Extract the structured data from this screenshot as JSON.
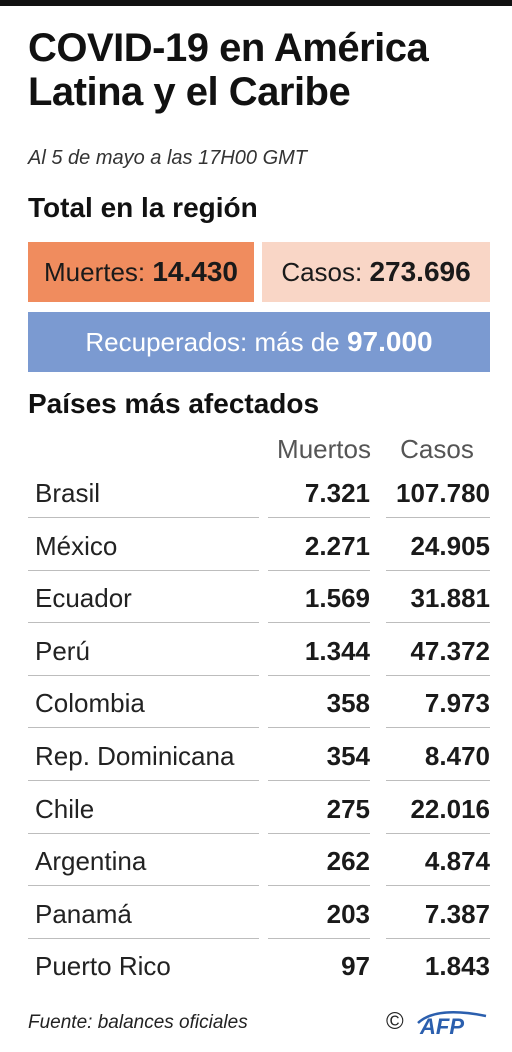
{
  "header": {
    "title_line1": "COVID-19 en América",
    "title_line2": "Latina y el Caribe",
    "subtitle": "Al 5 de mayo a las 17H00 GMT"
  },
  "totals": {
    "heading": "Total en la región",
    "deaths_label": "Muertes: ",
    "deaths_value": "14.430",
    "cases_label": "Casos: ",
    "cases_value": "273.696",
    "recovered_label": "Recuperados: más de ",
    "recovered_value": "97.000",
    "colors": {
      "deaths": "#f08c5e",
      "cases": "#f9d6c6",
      "recovered": "#7b9ad1"
    }
  },
  "countries": {
    "heading": "Países más afectados",
    "col_deaths": "Muertos",
    "col_cases": "Casos",
    "rows": [
      {
        "name": "Brasil",
        "deaths": "7.321",
        "cases": "107.780"
      },
      {
        "name": "México",
        "deaths": "2.271",
        "cases": "24.905"
      },
      {
        "name": "Ecuador",
        "deaths": "1.569",
        "cases": "31.881"
      },
      {
        "name": "Perú",
        "deaths": "1.344",
        "cases": "47.372"
      },
      {
        "name": "Colombia",
        "deaths": "358",
        "cases": "7.973"
      },
      {
        "name": "Rep. Dominicana",
        "deaths": "354",
        "cases": "8.470"
      },
      {
        "name": "Chile",
        "deaths": "275",
        "cases": "22.016"
      },
      {
        "name": "Argentina",
        "deaths": "262",
        "cases": "4.874"
      },
      {
        "name": "Panamá",
        "deaths": "203",
        "cases": "7.387"
      },
      {
        "name": "Puerto Rico",
        "deaths": "97",
        "cases": "1.843"
      }
    ]
  },
  "footer": {
    "source": "Fuente: balances oficiales",
    "copyright": "©",
    "logo_text": "AFP",
    "logo_color": "#2b5fae"
  }
}
